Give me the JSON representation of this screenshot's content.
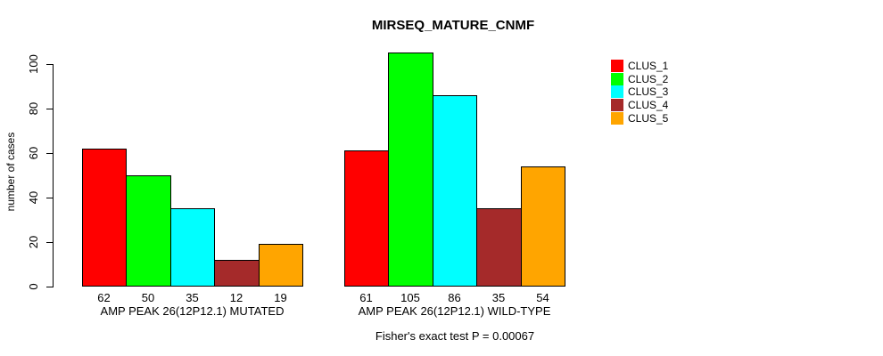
{
  "chart_data": {
    "type": "bar",
    "title": "MIRSEQ_MATURE_CNMF",
    "ylabel": "number of cases",
    "ylim": [
      0,
      105
    ],
    "yticks": [
      0,
      20,
      40,
      60,
      80,
      100
    ],
    "grid": false,
    "legend_position": "right",
    "categories": [
      "AMP PEAK 26(12P12.1) MUTATED",
      "AMP PEAK 26(12P12.1) WILD-TYPE"
    ],
    "series": [
      {
        "name": "CLUS_1",
        "color": "#ff0000",
        "values": [
          62,
          61
        ]
      },
      {
        "name": "CLUS_2",
        "color": "#00ff00",
        "values": [
          50,
          105
        ]
      },
      {
        "name": "CLUS_3",
        "color": "#00ffff",
        "values": [
          35,
          86
        ]
      },
      {
        "name": "CLUS_4",
        "color": "#a52a2a",
        "values": [
          12,
          35
        ]
      },
      {
        "name": "CLUS_5",
        "color": "#ffa500",
        "values": [
          19,
          54
        ]
      }
    ],
    "bar_value_labels": true,
    "footnote": "Fisher's exact test P = 0.00067"
  },
  "colors": {
    "background": "#ffffff",
    "axis": "#000000",
    "text": "#000000"
  }
}
